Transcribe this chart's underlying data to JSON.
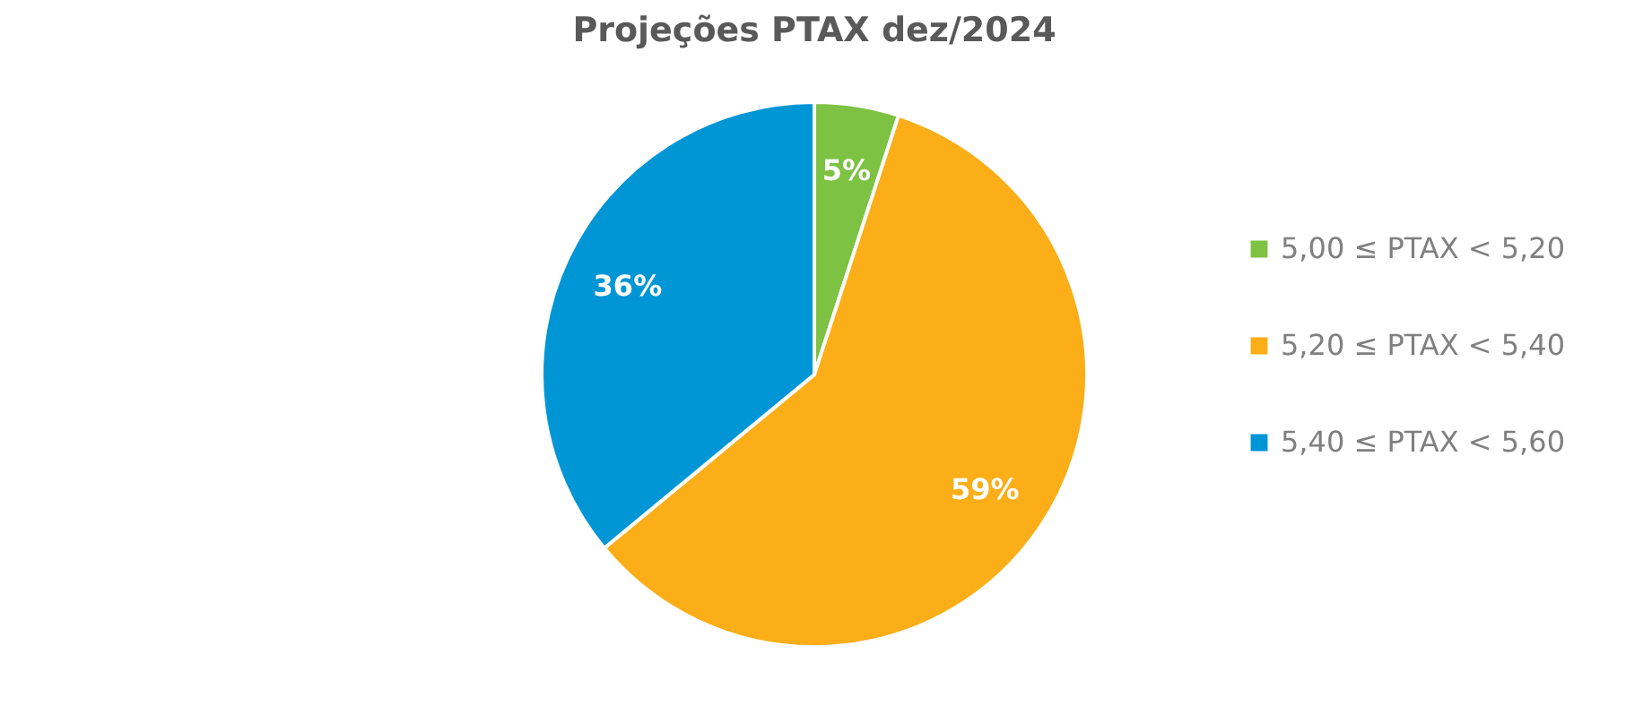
{
  "chart_data": {
    "type": "pie",
    "title": "Projeções PTAX dez/2024",
    "categories": [
      "5,00 ≤ PTAX < 5,20",
      "5,20 ≤ PTAX < 5,40",
      "5,40 ≤ PTAX < 5,60"
    ],
    "values": [
      5,
      59,
      36
    ],
    "colors": [
      "#7dc243",
      "#fbae17",
      "#0096d6"
    ],
    "value_labels": [
      "5%",
      "59%",
      "36%"
    ],
    "legend": "right"
  }
}
